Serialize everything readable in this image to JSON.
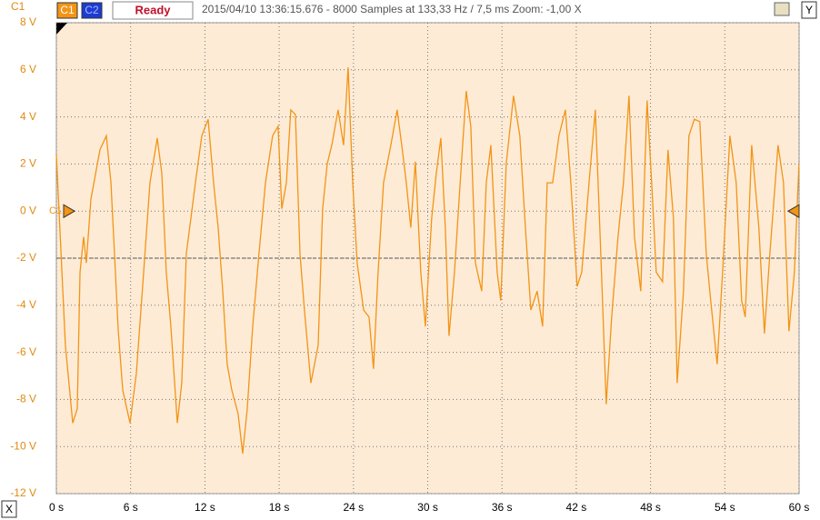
{
  "toolbar": {
    "channel": "C1",
    "buttons": [
      "C1",
      "C2"
    ],
    "status": "Ready",
    "info": "2015/04/10 13:36:15.676 - 8000 Samples at 133,33 Hz / 7,5 ms Zoom: -1,00 X",
    "y_button": "Y"
  },
  "x_button": "X",
  "chart_data": {
    "type": "line",
    "x": [
      0,
      0.73,
      1.32,
      1.69,
      1.91,
      2.2,
      2.42,
      2.79,
      3.52,
      4.04,
      4.41,
      4.77,
      4.99,
      5.36,
      5.95,
      6.46,
      7.05,
      7.56,
      8.15,
      8.52,
      8.88,
      9.25,
      9.77,
      10.13,
      10.5,
      10.87,
      11.23,
      11.75,
      12.26,
      12.7,
      13.07,
      13.44,
      13.8,
      14.17,
      14.68,
      15.05,
      15.42,
      15.86,
      16.37,
      16.89,
      17.47,
      17.91,
      18.21,
      18.58,
      18.94,
      19.31,
      19.68,
      20.04,
      20.56,
      21.15,
      21.51,
      21.88,
      22.25,
      22.76,
      23.2,
      23.57,
      23.94,
      24.3,
      24.82,
      25.26,
      25.62,
      25.99,
      26.43,
      27.02,
      27.53,
      27.9,
      28.27,
      28.63,
      29,
      29.44,
      29.81,
      30.32,
      30.69,
      31.06,
      31.42,
      31.72,
      32.16,
      32.67,
      33.11,
      33.48,
      33.85,
      34.36,
      34.73,
      35.1,
      35.61,
      35.9,
      36.34,
      36.93,
      37.44,
      37.89,
      38.33,
      38.84,
      39.28,
      39.65,
      40.09,
      40.6,
      41.12,
      41.56,
      42.07,
      42.44,
      43.03,
      43.54,
      43.98,
      44.42,
      44.86,
      45.37,
      45.81,
      46.26,
      46.7,
      47.21,
      47.72,
      48.09,
      48.46,
      48.97,
      49.41,
      49.85,
      50.15,
      50.66,
      51.1,
      51.54,
      51.98,
      52.5,
      52.86,
      53.38,
      53.82,
      54.41,
      54.92,
      55.36,
      55.65,
      56.17,
      56.75,
      57.2,
      57.64,
      58.3,
      58.74,
      59.18,
      59.62,
      59.99
    ],
    "series": [
      {
        "name": "C1",
        "color": "#f39415",
        "values": [
          2.4,
          -5.7,
          -9.0,
          -8.4,
          -2.6,
          -1.1,
          -2.2,
          0.5,
          2.6,
          3.2,
          1.2,
          -2.6,
          -5.0,
          -7.6,
          -9.0,
          -6.9,
          -2.6,
          1.2,
          3.1,
          1.6,
          -2.6,
          -4.9,
          -9.0,
          -7.3,
          -1.8,
          -0.3,
          1.2,
          3.2,
          3.9,
          1.2,
          -0.7,
          -3.4,
          -6.5,
          -7.6,
          -8.6,
          -10.3,
          -8.4,
          -4.9,
          -1.8,
          1.2,
          3.2,
          3.6,
          0.1,
          1.2,
          4.3,
          4.1,
          -1.8,
          -4.2,
          -7.3,
          -5.7,
          0.1,
          2.0,
          2.8,
          4.3,
          2.8,
          6.1,
          1.2,
          -2.2,
          -4.2,
          -4.5,
          -6.7,
          -2.6,
          1.2,
          2.8,
          4.3,
          2.8,
          1.2,
          -0.7,
          2.1,
          -2.6,
          -4.9,
          -0.3,
          1.6,
          3.1,
          -0.7,
          -5.3,
          -2.6,
          1.6,
          5.1,
          3.6,
          -2.2,
          -3.4,
          1.2,
          2.8,
          -2.6,
          -3.8,
          2.0,
          4.9,
          3.2,
          -0.7,
          -4.2,
          -3.4,
          -4.9,
          1.2,
          1.2,
          3.2,
          4.3,
          1.2,
          -3.2,
          -2.6,
          1.2,
          4.3,
          -1.8,
          -8.2,
          -4.5,
          -1.1,
          1.2,
          4.9,
          -1.1,
          -3.4,
          4.7,
          1.2,
          -2.6,
          -3.0,
          2.6,
          -0.3,
          -7.3,
          -3.4,
          3.2,
          3.9,
          3.8,
          -1.8,
          -3.8,
          -6.5,
          -2.6,
          3.2,
          1.2,
          -3.8,
          -4.5,
          2.8,
          -0.7,
          -5.2,
          -1.8,
          2.8,
          1.2,
          -5.1,
          -2.6,
          2.0
        ]
      }
    ],
    "xlim": [
      0,
      60
    ],
    "ylim": [
      -12,
      8
    ],
    "xticks": [
      {
        "value": 0,
        "label": "0 s"
      },
      {
        "value": 6,
        "label": "6 s"
      },
      {
        "value": 12,
        "label": "12 s"
      },
      {
        "value": 18,
        "label": "18 s"
      },
      {
        "value": 24,
        "label": "24 s"
      },
      {
        "value": 30,
        "label": "30 s"
      },
      {
        "value": 36,
        "label": "36 s"
      },
      {
        "value": 42,
        "label": "42 s"
      },
      {
        "value": 48,
        "label": "48 s"
      },
      {
        "value": 54,
        "label": "54 s"
      },
      {
        "value": 60,
        "label": "60 s"
      }
    ],
    "yticks": [
      {
        "value": 8,
        "label": "8 V"
      },
      {
        "value": 6,
        "label": "6 V"
      },
      {
        "value": 4,
        "label": "4 V"
      },
      {
        "value": 2,
        "label": "2 V"
      },
      {
        "value": 0,
        "label": "0 V"
      },
      {
        "value": -2,
        "label": "-2 V"
      },
      {
        "value": -4,
        "label": "-4 V"
      },
      {
        "value": -6,
        "label": "-6 V"
      },
      {
        "value": -8,
        "label": "-8 V"
      },
      {
        "value": -10,
        "label": "-10 V"
      },
      {
        "value": -12,
        "label": "-12 V"
      }
    ],
    "grid": true,
    "offset": 0,
    "trigger_level": -2
  }
}
